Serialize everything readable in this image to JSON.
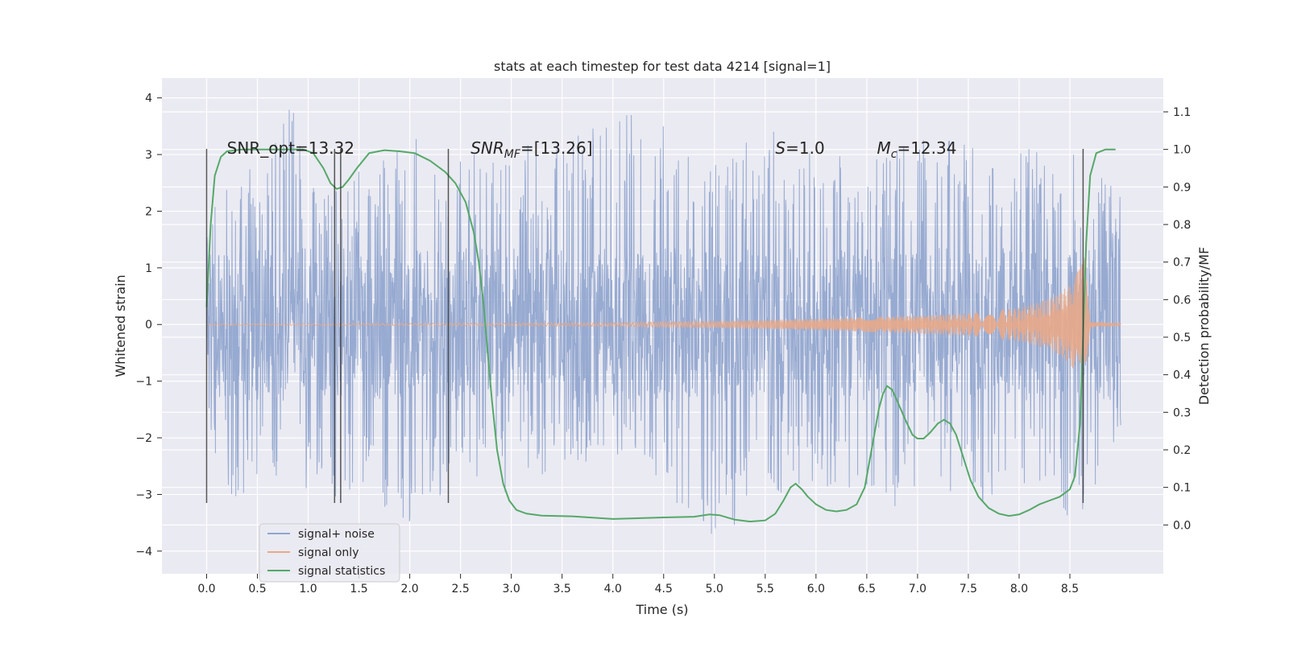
{
  "chart_data": {
    "type": "line",
    "title": "stats at each timestep for test data 4214 [signal=1]",
    "xlabel": "Time (s)",
    "ylabel": "Whitened strain",
    "ylabel_right": "Detection probability/MF",
    "xlim": [
      -0.44,
      9.42
    ],
    "ylim_left": [
      -4.4,
      4.35
    ],
    "ylim_right": [
      -0.13,
      1.19
    ],
    "x_ticks": [
      "0.0",
      "0.5",
      "1.0",
      "1.5",
      "2.0",
      "2.5",
      "3.0",
      "3.5",
      "4.0",
      "4.5",
      "5.0",
      "5.5",
      "6.0",
      "6.5",
      "7.0",
      "7.5",
      "8.0",
      "8.5"
    ],
    "y_ticks_left": [
      "4",
      "3",
      "2",
      "1",
      "0",
      "−1",
      "−2",
      "−3",
      "−4"
    ],
    "y_ticks_right": [
      "1.1",
      "1.0",
      "0.9",
      "0.8",
      "0.7",
      "0.6",
      "0.5",
      "0.4",
      "0.3",
      "0.2",
      "0.1",
      "0.0"
    ],
    "grid": true,
    "legend_position": "lower-left",
    "annotations": [
      {
        "x": 0.2,
        "y": 3.1,
        "text": "SNR_opt=13.32"
      },
      {
        "x": 2.6,
        "y": 3.1,
        "text": "SNR_MF=[13.26]"
      },
      {
        "x": 5.6,
        "y": 3.1,
        "text": "S=1.0"
      },
      {
        "x": 6.6,
        "y": 3.1,
        "text": "M_c=12.34"
      }
    ],
    "vlines_x": [
      0.0,
      1.26,
      1.32,
      2.38,
      8.63
    ],
    "vline_range_left": [
      -3.15,
      3.1
    ],
    "series": [
      {
        "name": "signal+ noise",
        "color": "#92a6cf",
        "axis": "left",
        "x_range": [
          0.0,
          9.0
        ],
        "envelope_samples": [
          [
            0.0,
            1.9,
            -2.3
          ],
          [
            0.3,
            3.0,
            -3.2
          ],
          [
            0.5,
            2.9,
            -3.0
          ],
          [
            0.83,
            4.0,
            -2.9
          ],
          [
            1.1,
            2.3,
            -3.3
          ],
          [
            1.5,
            2.7,
            -3.5
          ],
          [
            1.95,
            3.4,
            -3.6
          ],
          [
            2.5,
            3.0,
            -2.7
          ],
          [
            2.95,
            3.0,
            -3.0
          ],
          [
            3.55,
            3.5,
            -2.4
          ],
          [
            4.3,
            3.8,
            -2.5
          ],
          [
            5.05,
            2.8,
            -4.0
          ],
          [
            5.4,
            3.6,
            -3.1
          ],
          [
            6.0,
            3.1,
            -2.9
          ],
          [
            6.6,
            3.1,
            -3.3
          ],
          [
            7.2,
            3.3,
            -3.0
          ],
          [
            7.5,
            3.2,
            -3.4
          ],
          [
            8.0,
            3.1,
            -2.8
          ],
          [
            8.63,
            3.1,
            -3.6
          ],
          [
            9.0,
            2.3,
            -1.8
          ]
        ]
      },
      {
        "name": "signal only",
        "color": "#e8a888",
        "axis": "left",
        "x_range": [
          0.0,
          9.0
        ],
        "amplitude_envelope": [
          [
            0.0,
            0.01
          ],
          [
            4.0,
            0.03
          ],
          [
            5.0,
            0.06
          ],
          [
            6.0,
            0.1
          ],
          [
            7.0,
            0.16
          ],
          [
            7.5,
            0.2
          ],
          [
            8.0,
            0.3
          ],
          [
            8.3,
            0.45
          ],
          [
            8.5,
            0.7
          ],
          [
            8.6,
            1.0
          ],
          [
            8.65,
            1.2
          ],
          [
            8.7,
            0.05
          ],
          [
            9.0,
            0.02
          ]
        ]
      },
      {
        "name": "signal statistics",
        "color": "#55a868",
        "axis": "right",
        "points": [
          [
            0.0,
            0.58
          ],
          [
            0.04,
            0.8
          ],
          [
            0.08,
            0.93
          ],
          [
            0.14,
            0.98
          ],
          [
            0.2,
            0.995
          ],
          [
            0.35,
            1.0
          ],
          [
            0.7,
            1.0
          ],
          [
            0.95,
            1.0
          ],
          [
            1.05,
            0.99
          ],
          [
            1.15,
            0.95
          ],
          [
            1.22,
            0.91
          ],
          [
            1.28,
            0.895
          ],
          [
            1.34,
            0.9
          ],
          [
            1.4,
            0.92
          ],
          [
            1.48,
            0.95
          ],
          [
            1.6,
            0.99
          ],
          [
            1.75,
            0.998
          ],
          [
            1.9,
            0.995
          ],
          [
            2.05,
            0.99
          ],
          [
            2.2,
            0.97
          ],
          [
            2.35,
            0.94
          ],
          [
            2.45,
            0.91
          ],
          [
            2.55,
            0.86
          ],
          [
            2.63,
            0.78
          ],
          [
            2.68,
            0.7
          ],
          [
            2.73,
            0.58
          ],
          [
            2.77,
            0.45
          ],
          [
            2.81,
            0.33
          ],
          [
            2.86,
            0.2
          ],
          [
            2.92,
            0.11
          ],
          [
            2.98,
            0.065
          ],
          [
            3.05,
            0.04
          ],
          [
            3.15,
            0.03
          ],
          [
            3.3,
            0.025
          ],
          [
            3.6,
            0.023
          ],
          [
            4.0,
            0.016
          ],
          [
            4.5,
            0.02
          ],
          [
            4.8,
            0.022
          ],
          [
            4.95,
            0.028
          ],
          [
            5.05,
            0.026
          ],
          [
            5.2,
            0.014
          ],
          [
            5.35,
            0.009
          ],
          [
            5.5,
            0.012
          ],
          [
            5.6,
            0.03
          ],
          [
            5.68,
            0.065
          ],
          [
            5.75,
            0.1
          ],
          [
            5.8,
            0.11
          ],
          [
            5.86,
            0.095
          ],
          [
            5.92,
            0.075
          ],
          [
            6.0,
            0.055
          ],
          [
            6.1,
            0.04
          ],
          [
            6.2,
            0.036
          ],
          [
            6.3,
            0.04
          ],
          [
            6.4,
            0.055
          ],
          [
            6.48,
            0.1
          ],
          [
            6.56,
            0.22
          ],
          [
            6.62,
            0.31
          ],
          [
            6.66,
            0.35
          ],
          [
            6.7,
            0.37
          ],
          [
            6.75,
            0.36
          ],
          [
            6.8,
            0.33
          ],
          [
            6.88,
            0.28
          ],
          [
            6.95,
            0.24
          ],
          [
            7.0,
            0.23
          ],
          [
            7.06,
            0.23
          ],
          [
            7.12,
            0.245
          ],
          [
            7.2,
            0.27
          ],
          [
            7.26,
            0.28
          ],
          [
            7.32,
            0.27
          ],
          [
            7.38,
            0.24
          ],
          [
            7.45,
            0.18
          ],
          [
            7.52,
            0.12
          ],
          [
            7.6,
            0.075
          ],
          [
            7.7,
            0.045
          ],
          [
            7.8,
            0.03
          ],
          [
            7.9,
            0.024
          ],
          [
            8.0,
            0.028
          ],
          [
            8.1,
            0.04
          ],
          [
            8.2,
            0.055
          ],
          [
            8.3,
            0.065
          ],
          [
            8.4,
            0.075
          ],
          [
            8.5,
            0.095
          ],
          [
            8.55,
            0.13
          ],
          [
            8.6,
            0.27
          ],
          [
            8.63,
            0.5
          ],
          [
            8.66,
            0.75
          ],
          [
            8.7,
            0.93
          ],
          [
            8.76,
            0.99
          ],
          [
            8.85,
            1.0
          ],
          [
            8.95,
            1.0
          ]
        ]
      }
    ]
  }
}
